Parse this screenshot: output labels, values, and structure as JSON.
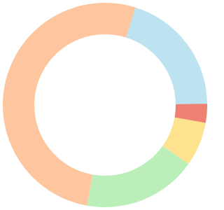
{
  "chart_data": {
    "type": "donut",
    "values": [
      20,
      3,
      7,
      18,
      52
    ],
    "colors": [
      "#bee3f0",
      "#ee8173",
      "#fee28d",
      "#bbefb9",
      "#fec69e"
    ]
  }
}
